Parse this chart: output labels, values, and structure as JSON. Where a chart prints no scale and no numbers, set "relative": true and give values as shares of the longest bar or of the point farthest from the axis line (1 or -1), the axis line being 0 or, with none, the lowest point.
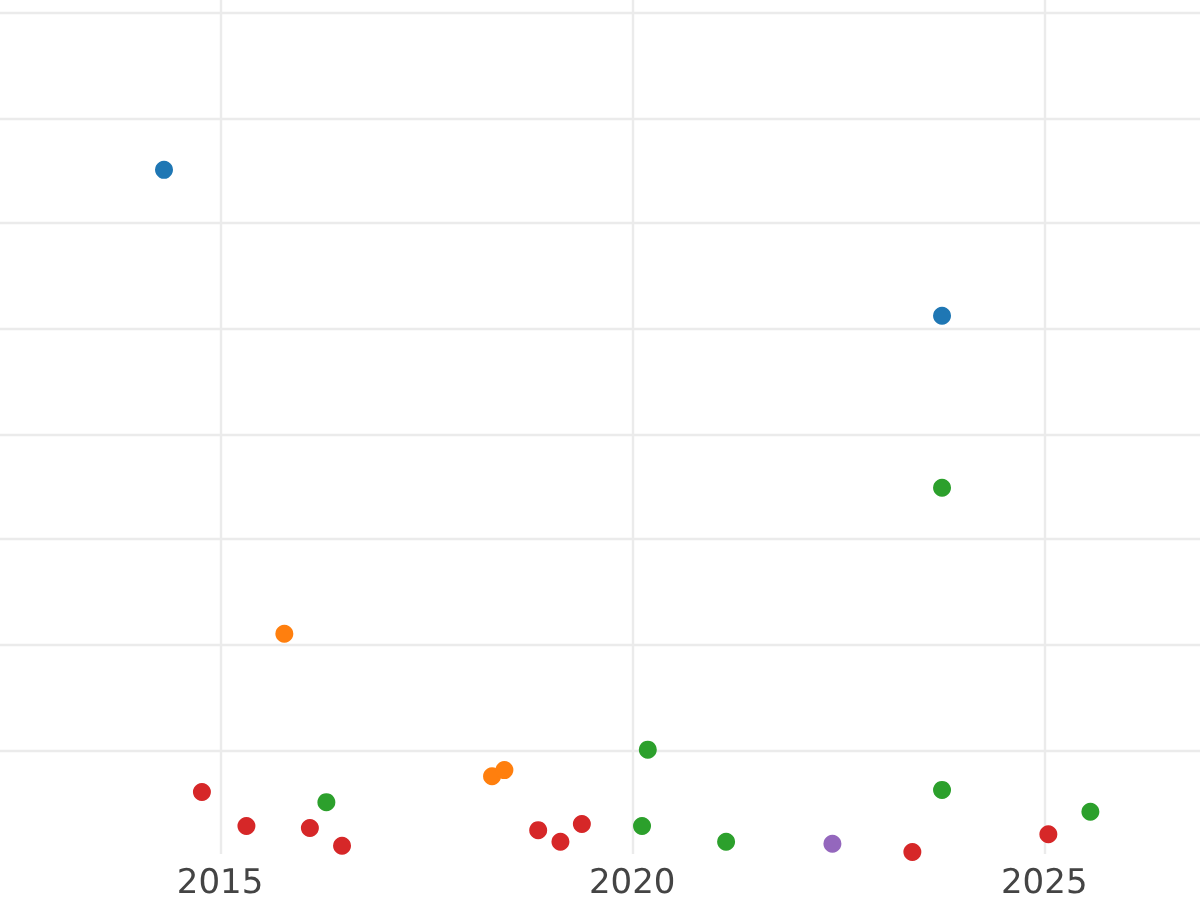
{
  "chart_data": {
    "type": "scatter",
    "relative": true,
    "grid": true,
    "marker": "circle",
    "xlim": [
      2012.33,
      2026.89
    ],
    "xticks": [
      2015,
      2020,
      2025
    ],
    "series": [
      {
        "color": "#1f77b4",
        "x": [
          2014.32,
          2023.76
        ],
        "values": [
          1.0,
          0.786
        ]
      },
      {
        "color": "#ff7f0e",
        "x": [
          2015.78,
          2018.3,
          2018.45
        ],
        "values": [
          0.32,
          0.111,
          0.12
        ]
      },
      {
        "color": "#2ca02c",
        "x": [
          2023.76,
          2020.19,
          2016.29,
          2020.12,
          2021.14,
          2023.76,
          2025.56
        ],
        "values": [
          0.534,
          0.15,
          0.073,
          0.038,
          0.015,
          0.091,
          0.059
        ]
      },
      {
        "color": "#d62728",
        "x": [
          2014.78,
          2015.32,
          2016.09,
          2016.48,
          2018.86,
          2019.13,
          2019.39,
          2023.4,
          2025.05
        ],
        "values": [
          0.088,
          0.038,
          0.035,
          0.009,
          0.032,
          0.015,
          0.041,
          0.0,
          0.026
        ]
      },
      {
        "color": "#9467bd",
        "x": [
          2022.43
        ],
        "values": [
          0.012
        ]
      }
    ]
  }
}
